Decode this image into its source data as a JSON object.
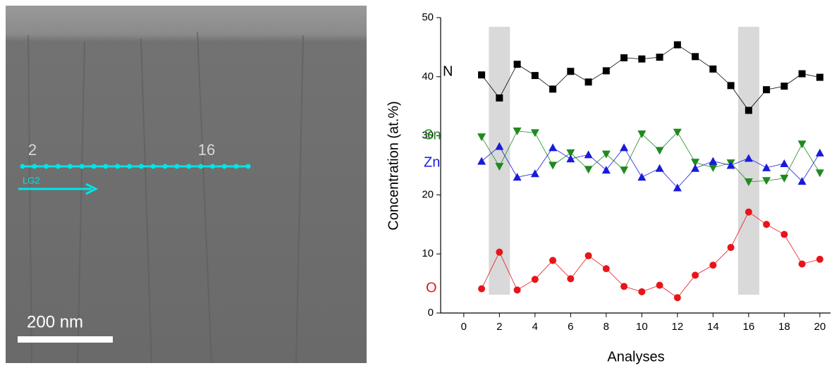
{
  "chart_data": {
    "type": "line",
    "x_label": "Analyses",
    "y_label": "Concentration (at.%)",
    "x": [
      1,
      2,
      3,
      4,
      5,
      6,
      7,
      8,
      9,
      10,
      11,
      12,
      13,
      14,
      15,
      16,
      17,
      18,
      19,
      20
    ],
    "series": [
      {
        "name": "N",
        "color": "#000000",
        "marker": "square",
        "values": [
          40.3,
          36.4,
          42.1,
          40.2,
          37.9,
          40.9,
          39.1,
          41.0,
          43.2,
          43.0,
          43.3,
          45.4,
          43.4,
          41.3,
          38.5,
          34.3,
          37.8,
          38.4,
          40.5,
          39.9
        ]
      },
      {
        "name": "Sn",
        "color": "#1f8a1f",
        "marker": "triangle-down",
        "values": [
          29.8,
          24.8,
          30.8,
          30.5,
          25.0,
          27.1,
          24.3,
          26.9,
          24.2,
          30.3,
          27.5,
          30.6,
          25.5,
          24.6,
          25.4,
          22.2,
          22.4,
          22.8,
          28.6,
          23.7
        ]
      },
      {
        "name": "Zn",
        "color": "#1a1adb",
        "marker": "triangle-up",
        "values": [
          25.7,
          28.2,
          23.0,
          23.6,
          28.0,
          26.1,
          26.8,
          24.2,
          28.0,
          23.0,
          24.5,
          21.2,
          24.5,
          25.7,
          25.0,
          26.2,
          24.6,
          25.3,
          22.3,
          27.1
        ]
      },
      {
        "name": "O",
        "color": "#e8141a",
        "marker": "circle",
        "values": [
          4.1,
          10.3,
          3.9,
          5.7,
          8.9,
          5.8,
          9.7,
          7.5,
          4.5,
          3.6,
          4.7,
          2.6,
          6.4,
          8.1,
          11.1,
          17.1,
          15.0,
          13.3,
          8.3,
          9.1
        ]
      }
    ],
    "highlights": [
      2,
      16
    ],
    "xlim": [
      -1.3,
      20.6
    ],
    "xticks": [
      0,
      2,
      4,
      6,
      8,
      10,
      12,
      14,
      16,
      18,
      20
    ],
    "ylim": [
      0,
      50
    ],
    "yticks": [
      0,
      10,
      20,
      30,
      40,
      50
    ]
  },
  "image": {
    "point_labels": [
      "2",
      "16"
    ],
    "line_label": "LG2",
    "scale_bar": "200 nm"
  }
}
